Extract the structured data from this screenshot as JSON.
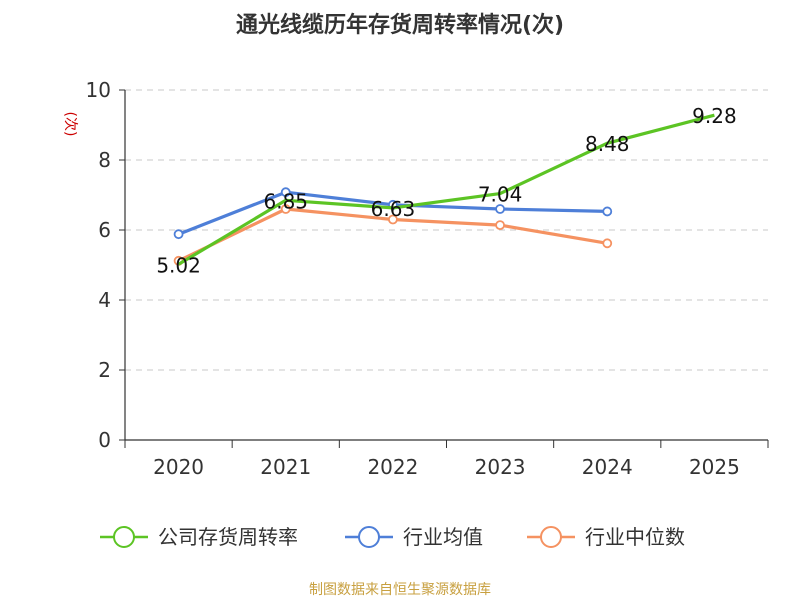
{
  "chart_data": {
    "type": "line",
    "title": "通光线缆历年存货周转率情况(次)",
    "ylabel": "(次)",
    "xlabel": "",
    "categories": [
      "2020",
      "2021",
      "2022",
      "2023",
      "2024",
      "2025"
    ],
    "ylim": [
      0,
      10
    ],
    "yticks": [
      0,
      2,
      4,
      6,
      8,
      10
    ],
    "grid": true,
    "legend_position": "bottom",
    "series": [
      {
        "name": "公司存货周转率",
        "color": "#5cc424",
        "values": [
          5.02,
          6.85,
          6.63,
          7.04,
          8.48,
          9.28
        ],
        "labels": [
          "5.02",
          "6.85",
          "6.63",
          "7.04",
          "8.48",
          "9.28"
        ]
      },
      {
        "name": "行业均值",
        "color": "#4e7fd8",
        "values": [
          5.88,
          7.08,
          6.72,
          6.6,
          6.53,
          null
        ]
      },
      {
        "name": "行业中位数",
        "color": "#f59261",
        "values": [
          5.12,
          6.6,
          6.3,
          6.14,
          5.62,
          null
        ]
      }
    ],
    "source": "制图数据来自恒生聚源数据库"
  }
}
